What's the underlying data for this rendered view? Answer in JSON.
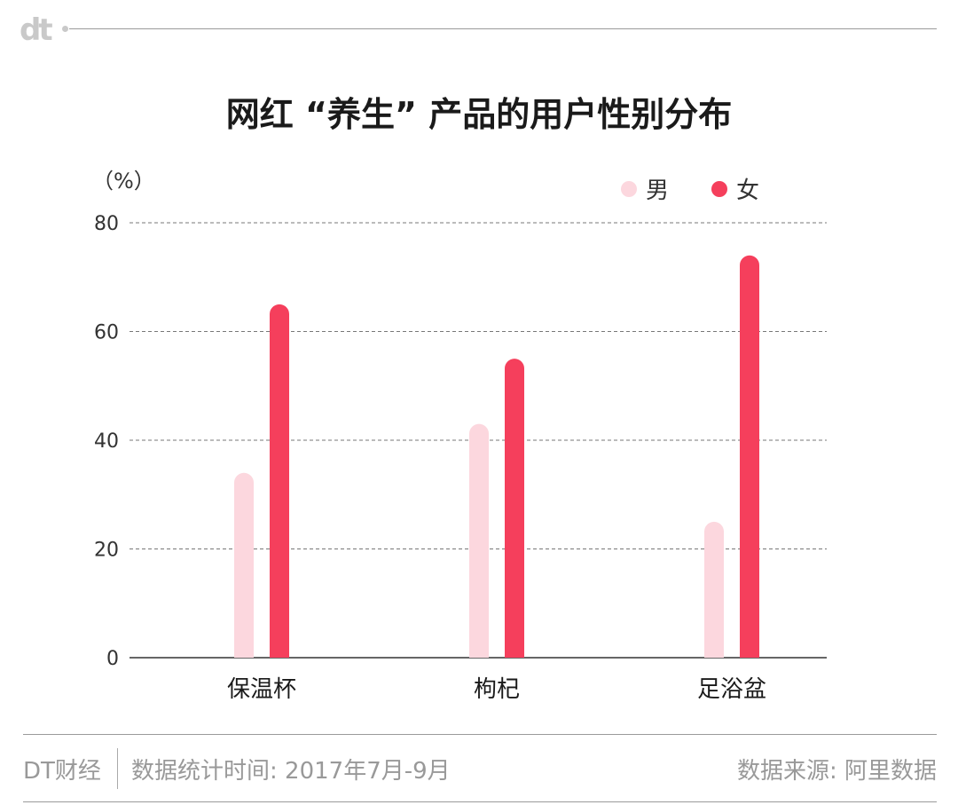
{
  "header": {
    "logo_text": "dt"
  },
  "chart_data": {
    "type": "bar",
    "title": "网红 “养生” 产品的用户性别分布",
    "unit_label": "（%）",
    "categories": [
      "保温杯",
      "枸杞",
      "足浴盆"
    ],
    "series": [
      {
        "name": "男",
        "color": "#fcd7de",
        "values": [
          34,
          43,
          25
        ]
      },
      {
        "name": "女",
        "color": "#f53f5c",
        "values": [
          65,
          55,
          74
        ]
      }
    ],
    "yticks": [
      0,
      20,
      40,
      60,
      80
    ],
    "ylim": [
      0,
      80
    ],
    "grid": true,
    "legend_position": "top-right"
  },
  "footer": {
    "brand": "DT财经",
    "stat_time": "数据统计时间: 2017年7月-9月",
    "source": "数据来源: 阿里数据"
  }
}
